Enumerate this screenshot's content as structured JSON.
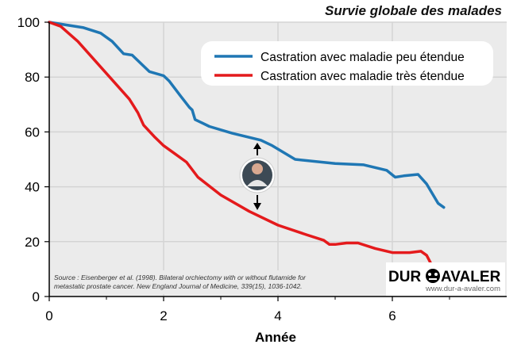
{
  "chart_data": {
    "type": "line",
    "title": "Survie globale des malades",
    "xlabel": "Année",
    "ylabel": "",
    "xlim": [
      0,
      8
    ],
    "ylim": [
      0,
      100
    ],
    "x_ticks": [
      0,
      2,
      4,
      6
    ],
    "y_ticks": [
      0,
      20,
      40,
      60,
      80,
      100
    ],
    "grid": true,
    "legend_position": "top-right",
    "series": [
      {
        "name": "Castration avec maladie peu étendue",
        "color": "#1f77b4",
        "x": [
          0,
          0.3,
          0.6,
          0.9,
          1.1,
          1.3,
          1.45,
          1.6,
          1.75,
          2.0,
          2.1,
          2.3,
          2.45,
          2.5,
          2.55,
          2.8,
          3.2,
          3.7,
          3.9,
          4.3,
          5.0,
          5.5,
          5.9,
          6.05,
          6.2,
          6.45,
          6.6,
          6.8,
          6.9
        ],
        "y": [
          100,
          99,
          98,
          96,
          93,
          88.5,
          88,
          85,
          82,
          80.5,
          78.5,
          73,
          69,
          68,
          64.5,
          62,
          59.5,
          57,
          55,
          50,
          48.5,
          48,
          46,
          43.5,
          44,
          44.5,
          41,
          34,
          32.5
        ]
      },
      {
        "name": "Castration avec maladie très étendue",
        "color": "#e41a1c",
        "x": [
          0,
          0.2,
          0.5,
          0.8,
          1.1,
          1.4,
          1.55,
          1.65,
          1.85,
          2.0,
          2.2,
          2.4,
          2.6,
          3.0,
          3.5,
          4.0,
          4.5,
          4.8,
          4.9,
          5.0,
          5.2,
          5.4,
          5.7,
          6.0,
          6.3,
          6.5,
          6.6,
          6.7
        ],
        "y": [
          100,
          98.5,
          93,
          86,
          79,
          72,
          67,
          62.5,
          58,
          55,
          52,
          49,
          43.5,
          37,
          31,
          26,
          22.5,
          20.5,
          19,
          19,
          19.5,
          19.5,
          17.5,
          16,
          16,
          16.5,
          15,
          11
        ]
      }
    ],
    "annotation": {
      "source": "Source : Eisenberger et al. (1998). Bilateral orchiectomy with or without flutamide for metastatic prostate cancer. New England Journal of Medicine, 339(15), 1036-1042.",
      "logo_left": "DUR",
      "logo_right": "AVALER",
      "logo_url": "www.dur-a-avaler.com"
    }
  }
}
